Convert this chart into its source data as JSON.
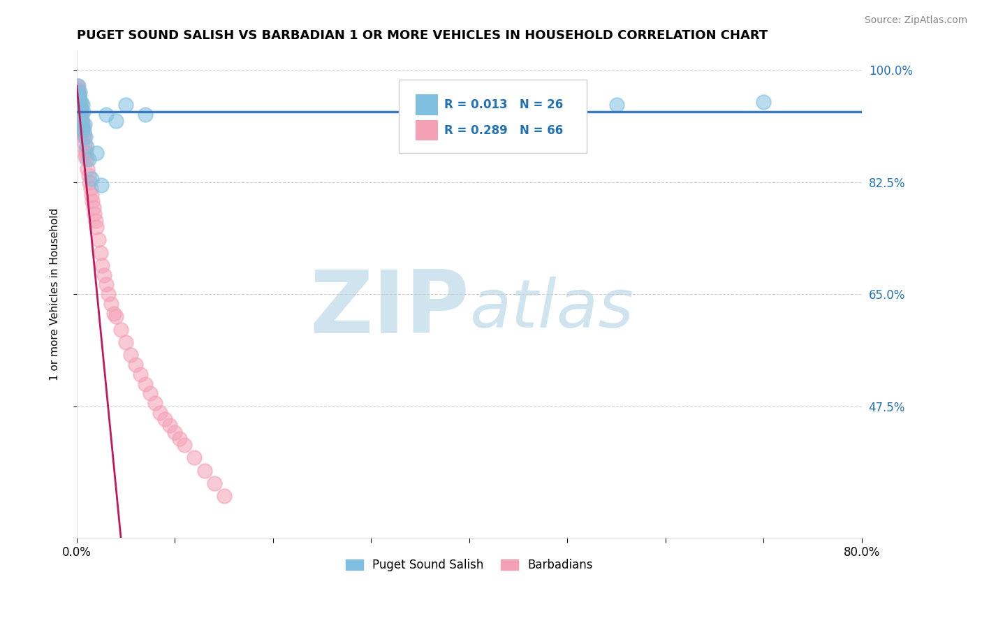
{
  "title": "PUGET SOUND SALISH VS BARBADIAN 1 OR MORE VEHICLES IN HOUSEHOLD CORRELATION CHART",
  "source": "Source: ZipAtlas.com",
  "ylabel": "1 or more Vehicles in Household",
  "xlim": [
    0.0,
    80.0
  ],
  "ylim": [
    27.0,
    103.0
  ],
  "xticks": [
    0.0,
    10.0,
    20.0,
    30.0,
    40.0,
    50.0,
    60.0,
    70.0,
    80.0
  ],
  "yticks": [
    47.5,
    65.0,
    82.5,
    100.0
  ],
  "blue_R": 0.013,
  "blue_N": 26,
  "pink_R": 0.289,
  "pink_N": 66,
  "blue_color": "#7fbfdf",
  "pink_color": "#f4a0b5",
  "blue_line_color": "#3a7abf",
  "pink_line_color": "#c2185b",
  "watermark_zip": "ZIP",
  "watermark_atlas": "atlas",
  "watermark_color": "#d0e4f0",
  "legend_label_blue": "Puget Sound Salish",
  "legend_label_pink": "Barbadians",
  "blue_scatter_x": [
    0.15,
    0.2,
    0.25,
    0.3,
    0.35,
    0.4,
    0.45,
    0.5,
    0.55,
    0.6,
    0.65,
    0.7,
    0.8,
    0.9,
    1.0,
    1.2,
    1.5,
    2.0,
    2.5,
    3.0,
    4.0,
    5.0,
    7.0,
    40.0,
    55.0,
    70.0
  ],
  "blue_scatter_y": [
    97.5,
    96.0,
    95.5,
    96.5,
    94.0,
    93.0,
    95.0,
    92.0,
    94.5,
    91.0,
    93.5,
    90.5,
    91.5,
    89.5,
    88.0,
    86.0,
    83.0,
    87.0,
    82.0,
    93.0,
    92.0,
    94.5,
    93.0,
    94.0,
    94.5,
    95.0
  ],
  "pink_scatter_x": [
    0.05,
    0.08,
    0.1,
    0.12,
    0.15,
    0.18,
    0.2,
    0.22,
    0.25,
    0.28,
    0.3,
    0.32,
    0.35,
    0.38,
    0.4,
    0.42,
    0.45,
    0.48,
    0.5,
    0.55,
    0.6,
    0.65,
    0.7,
    0.75,
    0.8,
    0.85,
    0.9,
    0.95,
    1.0,
    1.1,
    1.2,
    1.3,
    1.4,
    1.5,
    1.6,
    1.7,
    1.8,
    1.9,
    2.0,
    2.2,
    2.4,
    2.6,
    2.8,
    3.0,
    3.2,
    3.5,
    3.8,
    4.0,
    4.5,
    5.0,
    5.5,
    6.0,
    6.5,
    7.0,
    7.5,
    8.0,
    8.5,
    9.0,
    9.5,
    10.0,
    10.5,
    11.0,
    12.0,
    13.0,
    14.0,
    15.0
  ],
  "pink_scatter_y": [
    97.5,
    97.0,
    96.5,
    96.8,
    96.0,
    95.5,
    96.2,
    95.0,
    95.8,
    94.5,
    94.0,
    94.8,
    93.5,
    94.2,
    93.0,
    93.5,
    92.5,
    93.0,
    92.0,
    91.5,
    90.5,
    91.0,
    89.5,
    90.0,
    88.5,
    87.5,
    86.5,
    87.0,
    86.0,
    84.5,
    83.5,
    82.5,
    81.5,
    80.5,
    79.5,
    78.5,
    77.5,
    76.5,
    75.5,
    73.5,
    71.5,
    69.5,
    68.0,
    66.5,
    65.0,
    63.5,
    62.0,
    61.5,
    59.5,
    57.5,
    55.5,
    54.0,
    52.5,
    51.0,
    49.5,
    48.0,
    46.5,
    45.5,
    44.5,
    43.5,
    42.5,
    41.5,
    39.5,
    37.5,
    35.5,
    33.5
  ],
  "pink_trendline_x0": 0.0,
  "pink_trendline_y0": 97.5,
  "pink_trendline_x1": 4.5,
  "pink_trendline_y1": 27.0,
  "blue_trendline_y": 93.5,
  "right_ytick_color": "#2171b5"
}
